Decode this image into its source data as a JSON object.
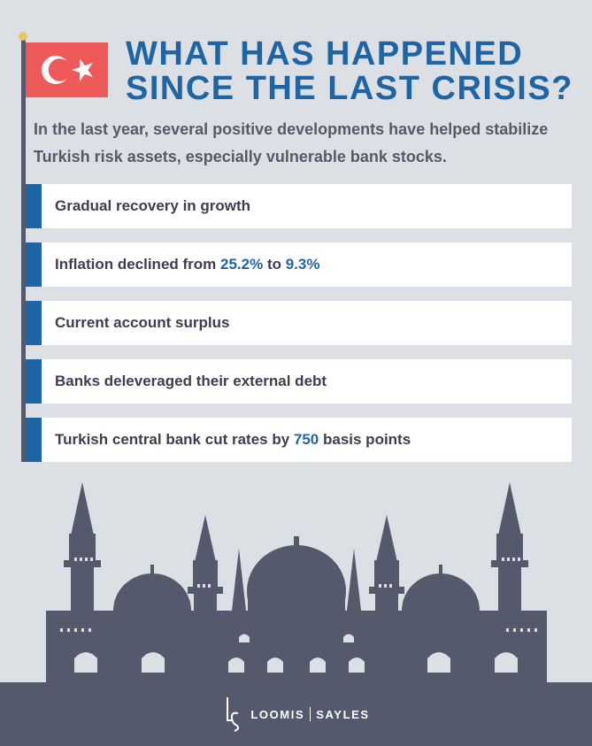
{
  "header": {
    "title_line1": "WHAT HAS HAPPENED",
    "title_line2": "SINCE THE LAST CRISIS?",
    "intro": "In the last year, several positive developments have helped stabilize Turkish risk assets, especially vulnerable bank stocks."
  },
  "items": [
    {
      "text": "Gradual recovery in growth"
    },
    {
      "pre": "Inflation declined from ",
      "hl1": "25.2%",
      "mid": " to ",
      "hl2": "9.3%"
    },
    {
      "text": "Current account surplus"
    },
    {
      "text": "Banks deleveraged their external debt"
    },
    {
      "pre": "Turkish central bank cut rates by ",
      "hl1": "750",
      "post": " basis points"
    }
  ],
  "footer": {
    "brand_left": "LOOMIS",
    "brand_right": "SAYLES"
  },
  "colors": {
    "accent_blue": "#1e65a6",
    "flag_red": "#ee5a5a",
    "slate": "#545a6c",
    "background": "#dcdfe4"
  }
}
